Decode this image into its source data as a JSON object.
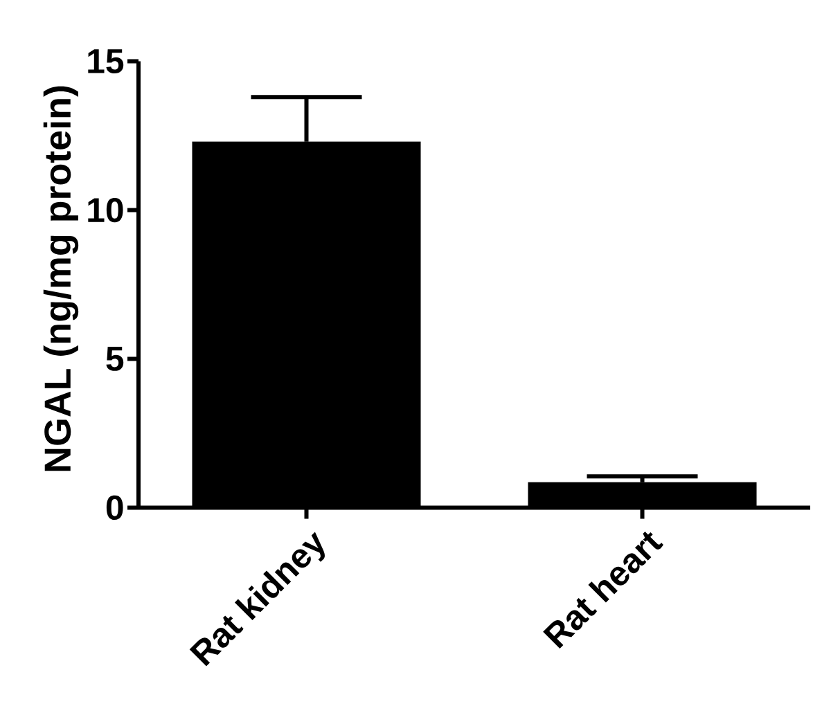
{
  "chart_data": {
    "type": "bar",
    "ylabel": "NGAL (ng/mg protein)",
    "categories": [
      "Rat kidney",
      "Rat heart"
    ],
    "values": [
      12.3,
      0.85
    ],
    "errors": [
      [
        12.3,
        13.8
      ],
      [
        0.85,
        1.05
      ]
    ],
    "color": "#000000",
    "ylim": [
      0,
      15
    ],
    "yticks": [
      0,
      5,
      10,
      15
    ]
  }
}
